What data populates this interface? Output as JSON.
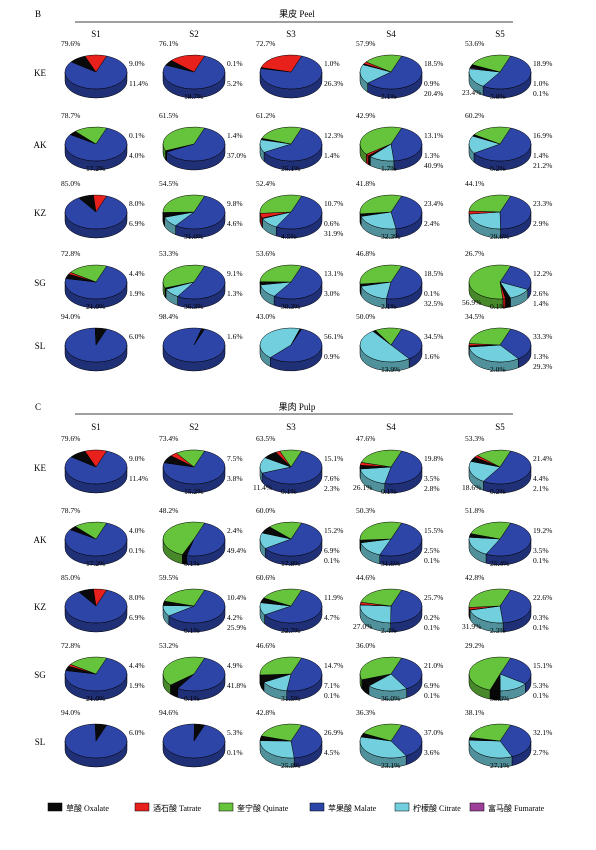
{
  "colors": {
    "Oxalate": "#0a0a0a",
    "Tatrate": "#e8211d",
    "Quinate": "#66c33c",
    "Malate": "#2e45a8",
    "Citrate": "#72cfde",
    "Fumarate": "#9c3f98"
  },
  "legend": [
    {
      "key": "Oxalate",
      "label": "草酸 Oxalate"
    },
    {
      "key": "Tatrate",
      "label": "酒石酸 Tatrate"
    },
    {
      "key": "Quinate",
      "label": "奎宁酸 Quinate"
    },
    {
      "key": "Malate",
      "label": "苹果酸 Malate"
    },
    {
      "key": "Citrate",
      "label": "柠檬酸 Citrate"
    },
    {
      "key": "Fumarate",
      "label": "富马酸 Fumarate"
    }
  ],
  "chart_data": [
    {
      "type": "pie",
      "panel_letter": "B",
      "title": "果皮 Peel",
      "columns": [
        "S1",
        "S2",
        "S3",
        "S4",
        "S5"
      ],
      "rows": [
        "KE",
        "AK",
        "KZ",
        "SG",
        "SL"
      ],
      "series_order": [
        "Malate",
        "Citrate",
        "Fumarate",
        "Oxalate",
        "Tatrate",
        "Quinate"
      ],
      "pies": [
        [
          {
            "Malate": 79.6,
            "Oxalate": 9.0,
            "Tatrate": 11.4,
            "labels": [
              "79.6%",
              "9.0%",
              "11.4%"
            ]
          },
          {
            "Malate": 76.1,
            "Oxalate": 5.2,
            "Tatrate": 18.7,
            "labels": [
              "76.1%",
              "0.1%",
              "5.2%",
              "18.7%"
            ]
          },
          {
            "Malate": 72.7,
            "Oxalate": 1.0,
            "Tatrate": 26.3,
            "labels": [
              "72.7%",
              "1.0%",
              "26.3%"
            ]
          },
          {
            "Malate": 57.9,
            "Citrate": 18.5,
            "Oxalate": 0.9,
            "Tatrate": 2.1,
            "Quinate": 20.4,
            "labels": [
              "57.9%",
              "18.5%",
              "0.9%",
              "2.1%",
              "20.4%"
            ]
          },
          {
            "Malate": 53.6,
            "Citrate": 18.9,
            "Fumarate": 1.0,
            "Oxalate": 3.0,
            "Tatrate": 0.1,
            "Quinate": 23.4,
            "labels": [
              "53.6%",
              "18.9%",
              "1.0%",
              "3.0%",
              "0.1%",
              "23.4%"
            ]
          }
        ],
        [
          {
            "Malate": 78.7,
            "Oxalate": 4.0,
            "Quinate": 17.2,
            "labels": [
              "78.7%",
              "0.1%",
              "4.0%",
              "17.2%"
            ]
          },
          {
            "Malate": 61.5,
            "Oxalate": 1.4,
            "Quinate": 37.0,
            "labels": [
              "61.5%",
              "1.4%",
              "37.0%"
            ]
          },
          {
            "Malate": 61.2,
            "Citrate": 12.3,
            "Oxalate": 1.4,
            "Quinate": 25.1,
            "labels": [
              "61.2%",
              "12.3%",
              "1.4%",
              "25.1%"
            ]
          },
          {
            "Malate": 42.9,
            "Citrate": 13.1,
            "Oxalate": 1.3,
            "Tatrate": 1.7,
            "Quinate": 40.9,
            "labels": [
              "42.9%",
              "13.1%",
              "1.3%",
              "1.7%",
              "40.9%"
            ]
          },
          {
            "Malate": 60.2,
            "Citrate": 16.9,
            "Oxalate": 1.4,
            "Tatrate": 0.2,
            "Quinate": 21.2,
            "labels": [
              "60.2%",
              "16.9%",
              "1.4%",
              "0.2%",
              "21.2%"
            ]
          }
        ],
        [
          {
            "Malate": 85.0,
            "Oxalate": 8.0,
            "Tatrate": 6.9,
            "labels": [
              "85.0%",
              "8.0%",
              "6.9%"
            ]
          },
          {
            "Malate": 54.5,
            "Citrate": 9.8,
            "Oxalate": 4.6,
            "Quinate": 31.0,
            "labels": [
              "54.5%",
              "9.8%",
              "4.6%",
              "31.0%"
            ]
          },
          {
            "Malate": 52.4,
            "Citrate": 10.7,
            "Fumarate": 0.6,
            "Tatrate": 4.5,
            "Quinate": 31.9,
            "labels": [
              "52.4%",
              "10.7%",
              "0.6%",
              "4.5%",
              "31.9%"
            ]
          },
          {
            "Malate": 41.8,
            "Citrate": 23.4,
            "Oxalate": 2.4,
            "Quinate": 32.3,
            "labels": [
              "41.8%",
              "23.4%",
              "2.4%",
              "32.3%"
            ]
          },
          {
            "Malate": 44.1,
            "Citrate": 23.3,
            "Tatrate": 2.9,
            "Quinate": 29.6,
            "labels": [
              "44.1%",
              "23.3%",
              "2.9%",
              "29.6%"
            ]
          }
        ],
        [
          {
            "Malate": 72.8,
            "Oxalate": 4.4,
            "Tatrate": 1.9,
            "Quinate": 21.0,
            "labels": [
              "72.8%",
              "4.4%",
              "1.9%",
              "21.0%"
            ]
          },
          {
            "Malate": 53.3,
            "Citrate": 9.1,
            "Oxalate": 1.3,
            "Quinate": 36.3,
            "labels": [
              "53.3%",
              "9.1%",
              "1.3%",
              "36.3%"
            ]
          },
          {
            "Malate": 53.6,
            "Citrate": 13.1,
            "Oxalate": 3.0,
            "Quinate": 30.3,
            "labels": [
              "53.6%",
              "13.1%",
              "3.0%",
              "30.3%"
            ]
          },
          {
            "Malate": 46.8,
            "Citrate": 18.5,
            "Oxalate": 2.1,
            "Quinate": 32.5,
            "labels": [
              "46.8%",
              "18.5%",
              "0.1%",
              "2.1%",
              "32.5%"
            ]
          },
          {
            "Malate": 26.7,
            "Citrate": 12.2,
            "Oxalate": 2.6,
            "Tatrate": 1.4,
            "Quinate": 56.9,
            "labels": [
              "26.7%",
              "12.2%",
              "2.6%",
              "0.1%",
              "1.4%",
              "56.9%"
            ]
          }
        ],
        [
          {
            "Malate": 94.0,
            "Oxalate": 6.0,
            "labels": [
              "94.0%",
              "6.0%"
            ]
          },
          {
            "Malate": 98.4,
            "Oxalate": 1.6,
            "labels": [
              "98.4%",
              "1.6%"
            ]
          },
          {
            "Malate": 56.1,
            "Citrate": 43.0,
            "Oxalate": 0.9,
            "labels": [
              "43.0%",
              "56.1%",
              "0.9%"
            ]
          },
          {
            "Malate": 34.5,
            "Citrate": 50.0,
            "Oxalate": 1.6,
            "Quinate": 13.9,
            "labels": [
              "50.0%",
              "34.5%",
              "1.6%",
              "13.9%"
            ]
          },
          {
            "Malate": 34.5,
            "Citrate": 33.3,
            "Oxalate": 1.3,
            "Tatrate": 2.0,
            "Quinate": 29.3,
            "labels": [
              "34.5%",
              "33.3%",
              "1.3%",
              "2.0%",
              "29.3%"
            ]
          }
        ]
      ]
    },
    {
      "type": "pie",
      "panel_letter": "C",
      "title": "果肉 Pulp",
      "columns": [
        "S1",
        "S2",
        "S3",
        "S4",
        "S5"
      ],
      "rows": [
        "KE",
        "AK",
        "KZ",
        "SG",
        "SL"
      ],
      "series_order": [
        "Malate",
        "Citrate",
        "Fumarate",
        "Oxalate",
        "Tatrate",
        "Quinate"
      ],
      "pies": [
        [
          {
            "Malate": 79.6,
            "Oxalate": 9.0,
            "Tatrate": 11.4,
            "labels": [
              "79.6%",
              "9.0%",
              "11.4%"
            ]
          },
          {
            "Malate": 73.4,
            "Oxalate": 7.5,
            "Tatrate": 3.8,
            "Quinate": 15.2,
            "labels": [
              "73.4%",
              "7.5%",
              "3.8%",
              "15.2%"
            ]
          },
          {
            "Malate": 63.5,
            "Citrate": 15.1,
            "Oxalate": 7.6,
            "Tatrate": 2.3,
            "Quinate": 11.4,
            "labels": [
              "63.5%",
              "15.1%",
              "7.6%",
              "0.1%",
              "2.3%",
              "11.4%"
            ]
          },
          {
            "Malate": 47.6,
            "Citrate": 19.8,
            "Oxalate": 3.5,
            "Tatrate": 2.8,
            "Quinate": 26.1,
            "labels": [
              "47.6%",
              "19.8%",
              "3.5%",
              "0.1%",
              "2.8%",
              "26.1%"
            ]
          },
          {
            "Malate": 53.3,
            "Citrate": 21.4,
            "Oxalate": 4.4,
            "Tatrate": 2.1,
            "Quinate": 18.6,
            "labels": [
              "53.3%",
              "21.4%",
              "4.4%",
              "0.2%",
              "2.1%",
              "18.6%"
            ]
          }
        ],
        [
          {
            "Malate": 78.7,
            "Oxalate": 4.0,
            "Quinate": 17.2,
            "labels": [
              "78.7%",
              "4.0%",
              "0.1%",
              "17.2%"
            ]
          },
          {
            "Malate": 48.2,
            "Oxalate": 2.4,
            "Quinate": 49.4,
            "labels": [
              "48.2%",
              "2.4%",
              "49.4%",
              "0.1%"
            ]
          },
          {
            "Malate": 60.0,
            "Citrate": 15.2,
            "Oxalate": 6.9,
            "Quinate": 17.8,
            "labels": [
              "60.0%",
              "15.2%",
              "6.9%",
              "17.8%",
              "0.1%"
            ]
          },
          {
            "Malate": 50.3,
            "Citrate": 15.5,
            "Oxalate": 2.5,
            "Quinate": 31.6,
            "labels": [
              "50.3%",
              "15.5%",
              "2.5%",
              "31.6%",
              "0.1%"
            ]
          },
          {
            "Malate": 51.8,
            "Citrate": 19.2,
            "Oxalate": 3.5,
            "Quinate": 25.4,
            "labels": [
              "51.8%",
              "19.2%",
              "3.5%",
              "25.4%",
              "0.1%"
            ]
          }
        ],
        [
          {
            "Malate": 85.0,
            "Oxalate": 8.0,
            "Tatrate": 6.9,
            "labels": [
              "85.0%",
              "8.0%",
              "6.9%"
            ]
          },
          {
            "Malate": 59.5,
            "Citrate": 10.4,
            "Oxalate": 4.2,
            "Quinate": 25.9,
            "labels": [
              "59.5%",
              "10.4%",
              "4.2%",
              "0.1%",
              "25.9%"
            ]
          },
          {
            "Malate": 60.6,
            "Citrate": 11.9,
            "Oxalate": 4.7,
            "Quinate": 22.7,
            "labels": [
              "60.6%",
              "11.9%",
              "4.7%",
              "22.7%"
            ]
          },
          {
            "Malate": 44.6,
            "Citrate": 25.7,
            "Fumarate": 0.2,
            "Tatrate": 2.4,
            "Quinate": 27.0,
            "labels": [
              "44.6%",
              "25.7%",
              "0.2%",
              "2.4%",
              "0.1%",
              "27.0%"
            ]
          },
          {
            "Malate": 42.8,
            "Citrate": 22.6,
            "Fumarate": 0.3,
            "Tatrate": 2.3,
            "Quinate": 31.9,
            "labels": [
              "42.8%",
              "22.6%",
              "0.3%",
              "2.3%",
              "0.1%",
              "31.9%"
            ]
          }
        ],
        [
          {
            "Malate": 72.8,
            "Oxalate": 4.4,
            "Tatrate": 1.9,
            "Quinate": 21.0,
            "labels": [
              "72.8%",
              "4.4%",
              "1.9%",
              "21.0%"
            ]
          },
          {
            "Malate": 53.2,
            "Oxalate": 4.9,
            "Quinate": 41.8,
            "labels": [
              "53.2%",
              "4.9%",
              "41.8%",
              "0.1%"
            ]
          },
          {
            "Malate": 46.6,
            "Citrate": 14.7,
            "Oxalate": 7.1,
            "Quinate": 31.5,
            "labels": [
              "46.6%",
              "14.7%",
              "7.1%",
              "31.5%",
              "0.1%"
            ]
          },
          {
            "Malate": 36.0,
            "Citrate": 21.0,
            "Oxalate": 6.9,
            "Quinate": 36.0,
            "labels": [
              "36.0%",
              "21.0%",
              "6.9%",
              "36.0%",
              "0.1%"
            ]
          },
          {
            "Malate": 29.2,
            "Citrate": 15.1,
            "Oxalate": 5.3,
            "Quinate": 50.3,
            "labels": [
              "29.2%",
              "15.1%",
              "5.3%",
              "50.3%",
              "0.1%"
            ]
          }
        ],
        [
          {
            "Malate": 94.0,
            "Oxalate": 6.0,
            "labels": [
              "94.0%",
              "6.0%"
            ]
          },
          {
            "Malate": 94.6,
            "Oxalate": 5.3,
            "labels": [
              "94.6%",
              "5.3%",
              "0.1%"
            ]
          },
          {
            "Malate": 42.8,
            "Citrate": 26.9,
            "Oxalate": 4.5,
            "Quinate": 25.8,
            "labels": [
              "42.8%",
              "26.9%",
              "4.5%",
              "25.8%"
            ]
          },
          {
            "Malate": 36.3,
            "Citrate": 37.0,
            "Oxalate": 3.6,
            "Quinate": 23.1,
            "labels": [
              "36.3%",
              "37.0%",
              "3.6%",
              "23.1%"
            ]
          },
          {
            "Malate": 38.1,
            "Citrate": 32.1,
            "Oxalate": 2.7,
            "Quinate": 27.1,
            "labels": [
              "38.1%",
              "32.1%",
              "2.7%",
              "27.1%"
            ]
          }
        ]
      ]
    }
  ]
}
